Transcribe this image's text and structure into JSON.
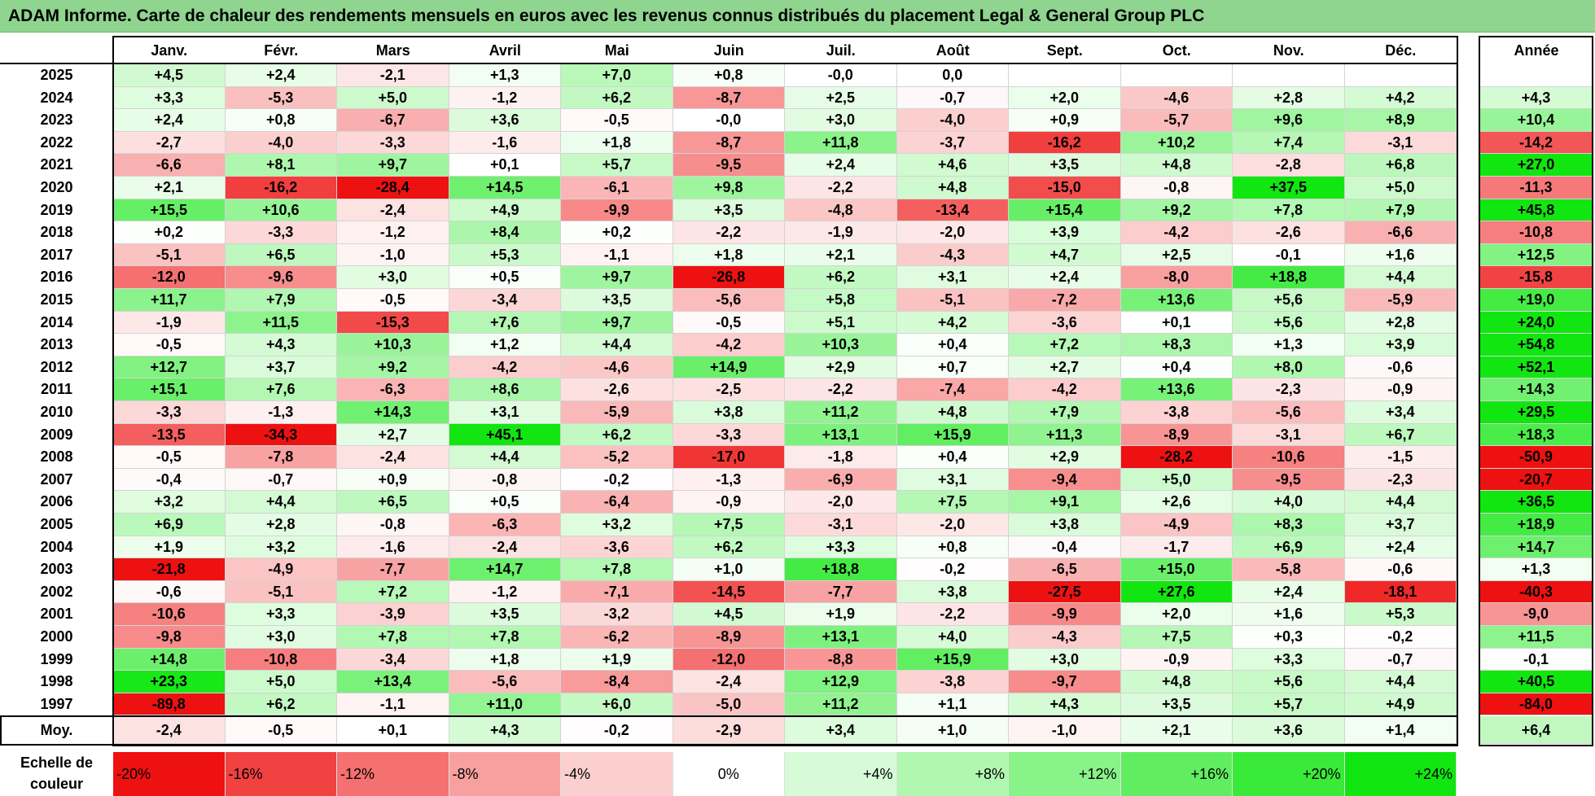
{
  "title": "ADAM Informe. Carte de chaleur des rendements mensuels en euros avec les revenus connus distribués du placement Legal & General Group PLC",
  "chart_data": {
    "type": "heatmap",
    "title": "ADAM Informe. Carte de chaleur des rendements mensuels en euros avec les revenus connus distribués du placement Legal & General Group PLC",
    "months": [
      "Janv.",
      "Févr.",
      "Mars",
      "Avril",
      "Mai",
      "Juin",
      "Juil.",
      "Août",
      "Sept.",
      "Oct.",
      "Nov.",
      "Déc."
    ],
    "year_header": "Année",
    "rows": [
      {
        "year": "2025",
        "values": [
          "+4,5",
          "+2,4",
          "-2,1",
          "+1,3",
          "+7,0",
          "+0,8",
          "-0,0",
          "0,0",
          "",
          "",
          "",
          ""
        ],
        "annual": ""
      },
      {
        "year": "2024",
        "values": [
          "+3,3",
          "-5,3",
          "+5,0",
          "-1,2",
          "+6,2",
          "-8,7",
          "+2,5",
          "-0,7",
          "+2,0",
          "-4,6",
          "+2,8",
          "+4,2"
        ],
        "annual": "+4,3"
      },
      {
        "year": "2023",
        "values": [
          "+2,4",
          "+0,8",
          "-6,7",
          "+3,6",
          "-0,5",
          "-0,0",
          "+3,0",
          "-4,0",
          "+0,9",
          "-5,7",
          "+9,6",
          "+8,9"
        ],
        "annual": "+10,4"
      },
      {
        "year": "2022",
        "values": [
          "-2,7",
          "-4,0",
          "-3,3",
          "-1,6",
          "+1,8",
          "-8,7",
          "+11,8",
          "-3,7",
          "-16,2",
          "+10,2",
          "+7,4",
          "-3,1"
        ],
        "annual": "-14,2"
      },
      {
        "year": "2021",
        "values": [
          "-6,6",
          "+8,1",
          "+9,7",
          "+0,1",
          "+5,7",
          "-9,5",
          "+2,4",
          "+4,6",
          "+3,5",
          "+4,8",
          "-2,8",
          "+6,8"
        ],
        "annual": "+27,0"
      },
      {
        "year": "2020",
        "values": [
          "+2,1",
          "-16,2",
          "-28,4",
          "+14,5",
          "-6,1",
          "+9,8",
          "-2,2",
          "+4,8",
          "-15,0",
          "-0,8",
          "+37,5",
          "+5,0"
        ],
        "annual": "-11,3"
      },
      {
        "year": "2019",
        "values": [
          "+15,5",
          "+10,6",
          "-2,4",
          "+4,9",
          "-9,9",
          "+3,5",
          "-4,8",
          "-13,4",
          "+15,4",
          "+9,2",
          "+7,8",
          "+7,9"
        ],
        "annual": "+45,8"
      },
      {
        "year": "2018",
        "values": [
          "+0,2",
          "-3,3",
          "-1,2",
          "+8,4",
          "+0,2",
          "-2,2",
          "-1,9",
          "-2,0",
          "+3,9",
          "-4,2",
          "-2,6",
          "-6,6"
        ],
        "annual": "-10,8"
      },
      {
        "year": "2017",
        "values": [
          "-5,1",
          "+6,5",
          "-1,0",
          "+5,3",
          "-1,1",
          "+1,8",
          "+2,1",
          "-4,3",
          "+4,7",
          "+2,5",
          "-0,1",
          "+1,6"
        ],
        "annual": "+12,5"
      },
      {
        "year": "2016",
        "values": [
          "-12,0",
          "-9,6",
          "+3,0",
          "+0,5",
          "+9,7",
          "-26,8",
          "+6,2",
          "+3,1",
          "+2,4",
          "-8,0",
          "+18,8",
          "+4,4"
        ],
        "annual": "-15,8"
      },
      {
        "year": "2015",
        "values": [
          "+11,7",
          "+7,9",
          "-0,5",
          "-3,4",
          "+3,5",
          "-5,6",
          "+5,8",
          "-5,1",
          "-7,2",
          "+13,6",
          "+5,6",
          "-5,9"
        ],
        "annual": "+19,0"
      },
      {
        "year": "2014",
        "values": [
          "-1,9",
          "+11,5",
          "-15,3",
          "+7,6",
          "+9,7",
          "-0,5",
          "+5,1",
          "+4,2",
          "-3,6",
          "+0,1",
          "+5,6",
          "+2,8"
        ],
        "annual": "+24,0"
      },
      {
        "year": "2013",
        "values": [
          "-0,5",
          "+4,3",
          "+10,3",
          "+1,2",
          "+4,4",
          "-4,2",
          "+10,3",
          "+0,4",
          "+7,2",
          "+8,3",
          "+1,3",
          "+3,9"
        ],
        "annual": "+54,8"
      },
      {
        "year": "2012",
        "values": [
          "+12,7",
          "+3,7",
          "+9,2",
          "-4,2",
          "-4,6",
          "+14,9",
          "+2,9",
          "+0,7",
          "+2,7",
          "+0,4",
          "+8,0",
          "-0,6"
        ],
        "annual": "+52,1"
      },
      {
        "year": "2011",
        "values": [
          "+15,1",
          "+7,6",
          "-6,3",
          "+8,6",
          "-2,6",
          "-2,5",
          "-2,2",
          "-7,4",
          "-4,2",
          "+13,6",
          "-2,3",
          "-0,9"
        ],
        "annual": "+14,3"
      },
      {
        "year": "2010",
        "values": [
          "-3,3",
          "-1,3",
          "+14,3",
          "+3,1",
          "-5,9",
          "+3,8",
          "+11,2",
          "+4,8",
          "+7,9",
          "-3,8",
          "-5,6",
          "+3,4"
        ],
        "annual": "+29,5"
      },
      {
        "year": "2009",
        "values": [
          "-13,5",
          "-34,3",
          "+2,7",
          "+45,1",
          "+6,2",
          "-3,3",
          "+13,1",
          "+15,9",
          "+11,3",
          "-8,9",
          "-3,1",
          "+6,7"
        ],
        "annual": "+18,3"
      },
      {
        "year": "2008",
        "values": [
          "-0,5",
          "-7,8",
          "-2,4",
          "+4,4",
          "-5,2",
          "-17,0",
          "-1,8",
          "+0,4",
          "+2,9",
          "-28,2",
          "-10,6",
          "-1,5"
        ],
        "annual": "-50,9"
      },
      {
        "year": "2007",
        "values": [
          "-0,4",
          "-0,7",
          "+0,9",
          "-0,8",
          "-0,2",
          "-1,3",
          "-6,9",
          "+3,1",
          "-9,4",
          "+5,0",
          "-9,5",
          "-2,3"
        ],
        "annual": "-20,7"
      },
      {
        "year": "2006",
        "values": [
          "+3,2",
          "+4,4",
          "+6,5",
          "+0,5",
          "-6,4",
          "-0,9",
          "-2,0",
          "+7,5",
          "+9,1",
          "+2,6",
          "+4,0",
          "+4,4"
        ],
        "annual": "+36,5"
      },
      {
        "year": "2005",
        "values": [
          "+6,9",
          "+2,8",
          "-0,8",
          "-6,3",
          "+3,2",
          "+7,5",
          "-3,1",
          "-2,0",
          "+3,8",
          "-4,9",
          "+8,3",
          "+3,7"
        ],
        "annual": "+18,9"
      },
      {
        "year": "2004",
        "values": [
          "+1,9",
          "+3,2",
          "-1,6",
          "-2,4",
          "-3,6",
          "+6,2",
          "+3,3",
          "+0,8",
          "-0,4",
          "-1,7",
          "+6,9",
          "+2,4"
        ],
        "annual": "+14,7"
      },
      {
        "year": "2003",
        "values": [
          "-21,8",
          "-4,9",
          "-7,7",
          "+14,7",
          "+7,8",
          "+1,0",
          "+18,8",
          "-0,2",
          "-6,5",
          "+15,0",
          "-5,8",
          "-0,6"
        ],
        "annual": "+1,3"
      },
      {
        "year": "2002",
        "values": [
          "-0,6",
          "-5,1",
          "+7,2",
          "-1,2",
          "-7,1",
          "-14,5",
          "-7,7",
          "+3,8",
          "-27,5",
          "+27,6",
          "+2,4",
          "-18,1"
        ],
        "annual": "-40,3"
      },
      {
        "year": "2001",
        "values": [
          "-10,6",
          "+3,3",
          "-3,9",
          "+3,5",
          "-3,2",
          "+4,5",
          "+1,9",
          "-2,2",
          "-9,9",
          "+2,0",
          "+1,6",
          "+5,3"
        ],
        "annual": "-9,0"
      },
      {
        "year": "2000",
        "values": [
          "-9,8",
          "+3,0",
          "+7,8",
          "+7,8",
          "-6,2",
          "-8,9",
          "+13,1",
          "+4,0",
          "-4,3",
          "+7,5",
          "+0,3",
          "-0,2"
        ],
        "annual": "+11,5"
      },
      {
        "year": "1999",
        "values": [
          "+14,8",
          "-10,8",
          "-3,4",
          "+1,8",
          "+1,9",
          "-12,0",
          "-8,8",
          "+15,9",
          "+3,0",
          "-0,9",
          "+3,3",
          "-0,7"
        ],
        "annual": "-0,1"
      },
      {
        "year": "1998",
        "values": [
          "+23,3",
          "+5,0",
          "+13,4",
          "-5,6",
          "-8,4",
          "-2,4",
          "+12,9",
          "-3,8",
          "-9,7",
          "+4,8",
          "+5,6",
          "+4,4"
        ],
        "annual": "+40,5"
      },
      {
        "year": "1997",
        "values": [
          "-89,8",
          "+6,2",
          "-1,1",
          "+11,0",
          "+6,0",
          "-5,0",
          "+11,2",
          "+1,1",
          "+4,3",
          "+3,5",
          "+5,7",
          "+4,9"
        ],
        "annual": "-84,0"
      }
    ],
    "average": {
      "label": "Moy.",
      "values": [
        "-2,4",
        "-0,5",
        "+0,1",
        "+4,3",
        "-0,2",
        "-2,9",
        "+3,4",
        "+1,0",
        "-1,0",
        "+2,1",
        "+3,6",
        "+1,4"
      ],
      "annual": "+6,4"
    },
    "scale": {
      "label": "Echelle de couleur",
      "steps": [
        "-20%",
        "-16%",
        "-12%",
        "-8%",
        "-4%",
        "0%",
        "+4%",
        "+8%",
        "+12%",
        "+16%",
        "+20%",
        "+24%"
      ],
      "step_values": [
        -20,
        -16,
        -12,
        -8,
        -4,
        0,
        4,
        8,
        12,
        16,
        20,
        24
      ]
    },
    "colors": {
      "negative_max": "#ee1111",
      "neutral": "#ffffff",
      "positive_max": "#11e611",
      "title_bar": "#8fd48f"
    }
  }
}
